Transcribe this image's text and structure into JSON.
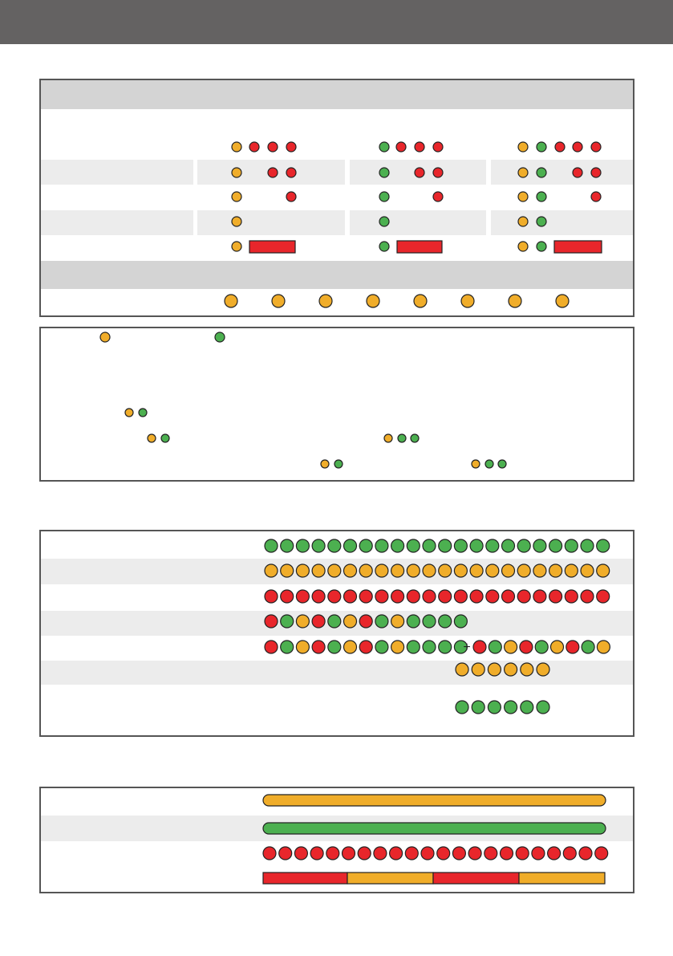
{
  "sequence_table": {
    "join_symbol": "+"
  }
}
